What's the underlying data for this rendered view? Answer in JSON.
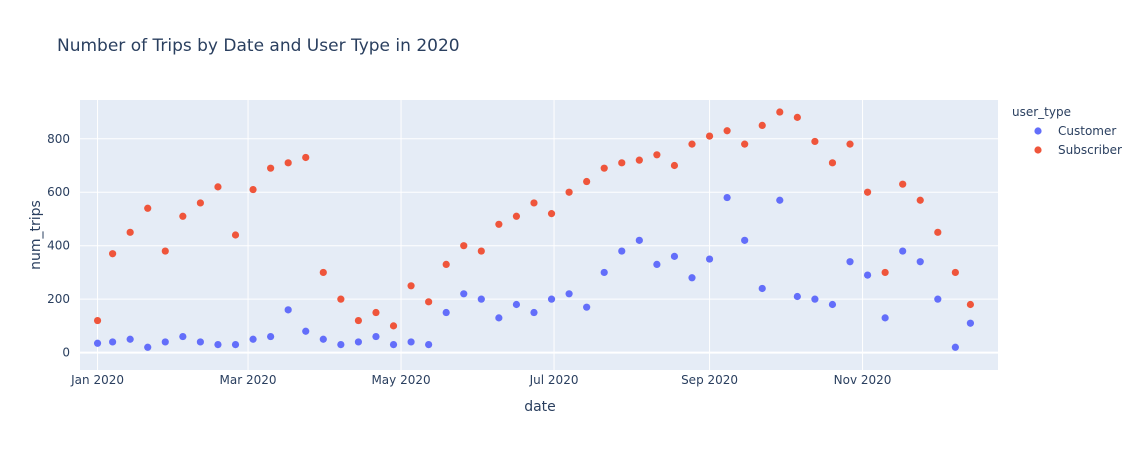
{
  "chart_data": {
    "type": "scatter",
    "title": "Number of Trips by Date and User Type in 2020",
    "xlabel": "date",
    "ylabel": "num_trips",
    "x_ticks": [
      "Jan 2020",
      "Mar 2020",
      "May 2020",
      "Jul 2020",
      "Sep 2020",
      "Nov 2020"
    ],
    "y_ticks": [
      0,
      200,
      400,
      600,
      800
    ],
    "xlim": [
      "2019-12-25",
      "2020-12-25"
    ],
    "ylim": [
      -65,
      945
    ],
    "grid": true,
    "plot_bg": "#e5ecf6",
    "grid_color": "#ffffff",
    "legend": {
      "title": "user_type",
      "position": "top-right"
    },
    "series": [
      {
        "name": "Customer",
        "color": "#636efa",
        "x": [
          "2020-01-01",
          "2020-01-07",
          "2020-01-14",
          "2020-01-21",
          "2020-01-28",
          "2020-02-04",
          "2020-02-11",
          "2020-02-18",
          "2020-02-25",
          "2020-03-03",
          "2020-03-10",
          "2020-03-17",
          "2020-03-24",
          "2020-03-31",
          "2020-04-07",
          "2020-04-14",
          "2020-04-21",
          "2020-04-28",
          "2020-05-05",
          "2020-05-12",
          "2020-05-19",
          "2020-05-26",
          "2020-06-02",
          "2020-06-09",
          "2020-06-16",
          "2020-06-23",
          "2020-06-30",
          "2020-07-07",
          "2020-07-14",
          "2020-07-21",
          "2020-07-28",
          "2020-08-04",
          "2020-08-11",
          "2020-08-18",
          "2020-08-25",
          "2020-09-01",
          "2020-09-08",
          "2020-09-15",
          "2020-09-22",
          "2020-09-29",
          "2020-10-06",
          "2020-10-13",
          "2020-10-20",
          "2020-10-27",
          "2020-11-03",
          "2020-11-10",
          "2020-11-17",
          "2020-11-24",
          "2020-12-01",
          "2020-12-08",
          "2020-12-14"
        ],
        "values": [
          35,
          40,
          50,
          20,
          40,
          60,
          40,
          30,
          30,
          50,
          60,
          160,
          80,
          50,
          30,
          40,
          60,
          30,
          40,
          30,
          150,
          220,
          200,
          130,
          180,
          150,
          200,
          220,
          170,
          300,
          380,
          420,
          330,
          360,
          280,
          350,
          580,
          420,
          240,
          570,
          210,
          200,
          180,
          340,
          290,
          130,
          380,
          340,
          200,
          20,
          110
        ]
      },
      {
        "name": "Subscriber",
        "color": "#ef553b",
        "x": [
          "2020-01-01",
          "2020-01-07",
          "2020-01-14",
          "2020-01-21",
          "2020-01-28",
          "2020-02-04",
          "2020-02-11",
          "2020-02-18",
          "2020-02-25",
          "2020-03-03",
          "2020-03-10",
          "2020-03-17",
          "2020-03-24",
          "2020-03-31",
          "2020-04-07",
          "2020-04-14",
          "2020-04-21",
          "2020-04-28",
          "2020-05-05",
          "2020-05-12",
          "2020-05-19",
          "2020-05-26",
          "2020-06-02",
          "2020-06-09",
          "2020-06-16",
          "2020-06-23",
          "2020-06-30",
          "2020-07-07",
          "2020-07-14",
          "2020-07-21",
          "2020-07-28",
          "2020-08-04",
          "2020-08-11",
          "2020-08-18",
          "2020-08-25",
          "2020-09-01",
          "2020-09-08",
          "2020-09-15",
          "2020-09-22",
          "2020-09-29",
          "2020-10-06",
          "2020-10-13",
          "2020-10-20",
          "2020-10-27",
          "2020-11-03",
          "2020-11-10",
          "2020-11-17",
          "2020-11-24",
          "2020-12-01",
          "2020-12-08",
          "2020-12-14"
        ],
        "values": [
          120,
          370,
          450,
          540,
          380,
          510,
          560,
          620,
          440,
          610,
          690,
          710,
          730,
          300,
          200,
          120,
          150,
          100,
          250,
          190,
          330,
          400,
          380,
          480,
          510,
          560,
          520,
          600,
          640,
          690,
          710,
          720,
          740,
          700,
          780,
          810,
          830,
          780,
          850,
          900,
          880,
          790,
          710,
          780,
          600,
          300,
          630,
          570,
          450,
          300,
          180
        ]
      }
    ]
  }
}
